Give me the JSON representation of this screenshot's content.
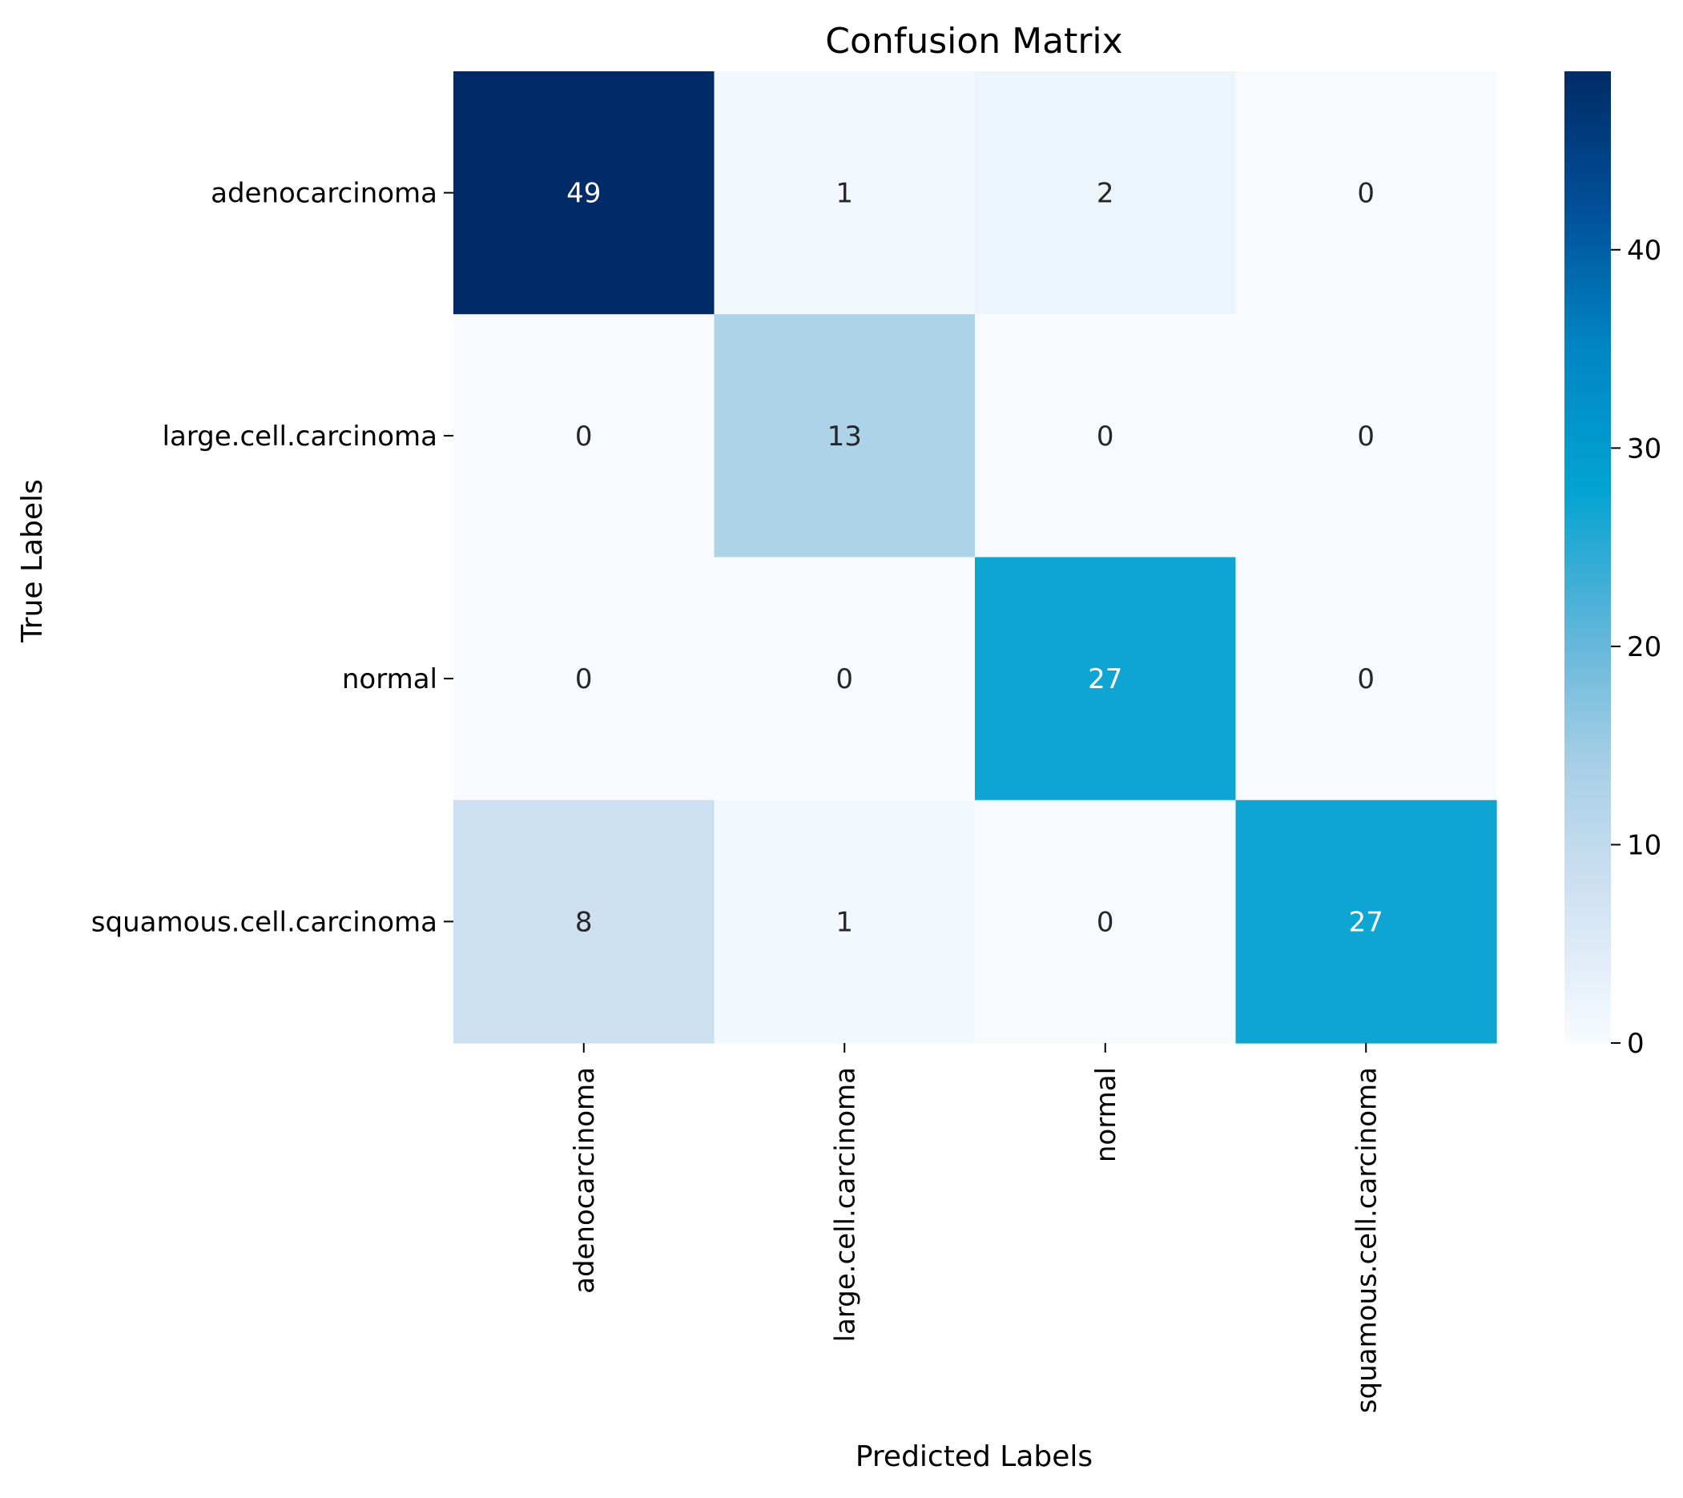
{
  "chart_data": {
    "type": "heatmap",
    "title": "Confusion Matrix",
    "xlabel": "Predicted Labels",
    "ylabel": "True Labels",
    "x_categories": [
      "adenocarcinoma",
      "large.cell.carcinoma",
      "normal",
      "squamous.cell.carcinoma"
    ],
    "y_categories": [
      "adenocarcinoma",
      "large.cell.carcinoma",
      "normal",
      "squamous.cell.carcinoma"
    ],
    "values": [
      [
        49,
        1,
        2,
        0
      ],
      [
        0,
        13,
        0,
        0
      ],
      [
        0,
        0,
        27,
        0
      ],
      [
        8,
        1,
        0,
        27
      ]
    ],
    "colormap": "Blues",
    "vmin": 0,
    "vmax": 49,
    "colorbar_ticks": [
      0,
      10,
      20,
      30,
      40
    ],
    "colorbar_tick_labels": [
      "0",
      "10",
      "20",
      "30",
      "40"
    ],
    "annotation_colors": {
      "light": "#ffffff",
      "dark": "#262626"
    }
  },
  "colors": {
    "colormap_stops": [
      "#f7fbff",
      "#d2e3f3",
      "#a8cfe6",
      "#5cb4d9",
      "#01a3d1",
      "#0186c3",
      "#015099",
      "#002b67"
    ]
  }
}
